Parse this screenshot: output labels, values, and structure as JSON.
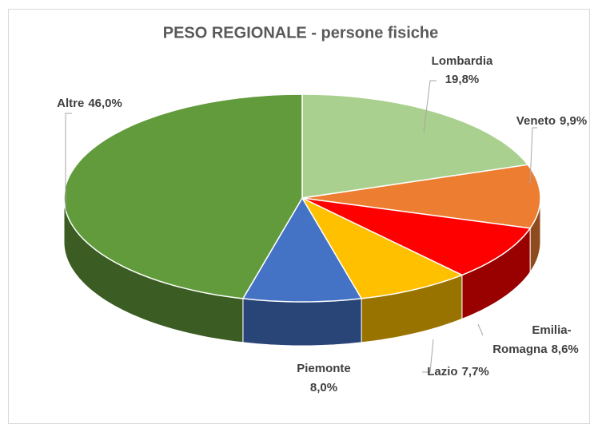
{
  "chart_data": {
    "type": "pie3d",
    "title": "PESO REGIONALE - persone fisiche",
    "categories": [
      "Lombardia",
      "Veneto",
      "Emilia-Romagna",
      "Lazio",
      "Piemonte",
      "Altre"
    ],
    "values": [
      19.8,
      9.9,
      8.6,
      7.7,
      8.0,
      46.0
    ],
    "value_labels": [
      "19,8%",
      "9,9%",
      "8,6%",
      "7,7%",
      "8,0%",
      "46,0%"
    ],
    "colors": [
      "#a9d08e",
      "#ed7d31",
      "#ff0000",
      "#ffc000",
      "#4472c4",
      "#629b3c"
    ]
  }
}
